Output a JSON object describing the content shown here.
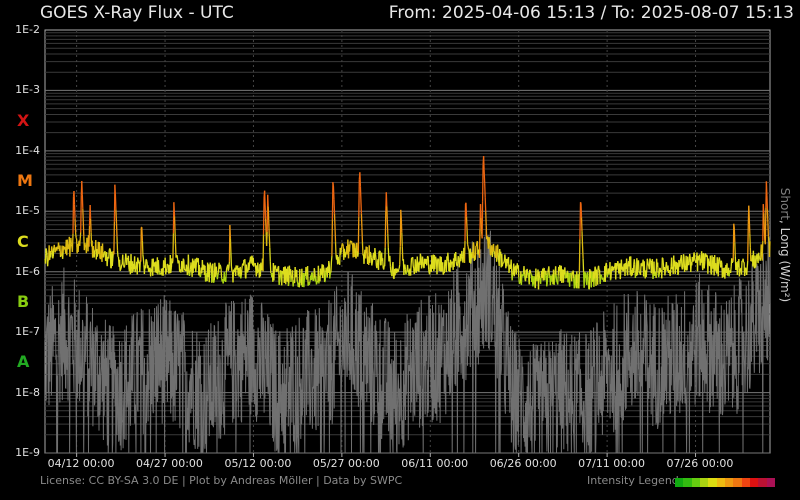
{
  "header": {
    "title": "GOES X-Ray Flux - UTC",
    "range": "From: 2025-04-06 15:13  /  To: 2025-08-07 15:13"
  },
  "footer": {
    "credits": "License: CC BY-SA 3.0 DE | Plot by Andreas Möller | Data by SWPC",
    "legend_label": "Intensity Legend",
    "legend_colors": [
      "#11aa11",
      "#33bb11",
      "#66cc11",
      "#aad411",
      "#dddd11",
      "#eebb11",
      "#ee9911",
      "#ee7711",
      "#ee4411",
      "#dd1111",
      "#bb1133",
      "#aa1155"
    ]
  },
  "chart_data": {
    "type": "line",
    "title": "GOES X-Ray Flux - UTC",
    "y_scale": "log",
    "ylim": [
      1e-09,
      0.01
    ],
    "ylabel_short": "Short",
    "ylabel_sep": ", ",
    "ylabel_long": "Long (W/m²)",
    "y_ticks": [
      {
        "value": 0.01,
        "label": "1E-2"
      },
      {
        "value": 0.001,
        "label": "1E-3"
      },
      {
        "value": 0.0001,
        "label": "1E-4"
      },
      {
        "value": 1e-05,
        "label": "1E-5"
      },
      {
        "value": 1e-06,
        "label": "1E-6"
      },
      {
        "value": 1e-07,
        "label": "1E-7"
      },
      {
        "value": 1e-08,
        "label": "1E-8"
      },
      {
        "value": 1e-09,
        "label": "1E-9"
      }
    ],
    "flare_classes": [
      {
        "label": "X",
        "value": 0.0001,
        "color": "#d21414"
      },
      {
        "label": "M",
        "value": 1e-05,
        "color": "#ee7711"
      },
      {
        "label": "C",
        "value": 1e-06,
        "color": "#dcdc1e"
      },
      {
        "label": "B",
        "value": 1e-07,
        "color": "#88cc11"
      },
      {
        "label": "A",
        "value": 1e-08,
        "color": "#22aa22"
      }
    ],
    "x_range": [
      "2025-04-06 15:13",
      "2025-08-07 15:13"
    ],
    "x_ticks": [
      "04/12 00:00",
      "04/27 00:00",
      "05/12 00:00",
      "05/27 00:00",
      "06/11 00:00",
      "06/26 00:00",
      "07/11 00:00",
      "07/26 00:00"
    ],
    "grid": true,
    "series": [
      {
        "role": "long",
        "x": [
          "2025-04-06",
          "2025-04-10",
          "2025-04-14",
          "2025-04-18",
          "2025-04-22",
          "2025-04-26",
          "2025-04-30",
          "2025-05-04",
          "2025-05-08",
          "2025-05-12",
          "2025-05-16",
          "2025-05-20",
          "2025-05-24",
          "2025-05-28",
          "2025-06-01",
          "2025-06-05",
          "2025-06-09",
          "2025-06-13",
          "2025-06-17",
          "2025-06-21",
          "2025-06-25",
          "2025-06-29",
          "2025-07-03",
          "2025-07-07",
          "2025-07-11",
          "2025-07-15",
          "2025-07-19",
          "2025-07-23",
          "2025-07-27",
          "2025-07-31",
          "2025-08-04",
          "2025-08-07"
        ],
        "values": [
          1.6e-06,
          2.5e-06,
          2.8e-06,
          1.6e-06,
          1.3e-06,
          1.2e-06,
          1.4e-06,
          1e-06,
          9e-07,
          1.3e-06,
          9e-07,
          8e-07,
          9e-07,
          2.5e-06,
          1.8e-06,
          1.1e-06,
          1.4e-06,
          1.3e-06,
          1.8e-06,
          2.8e-06,
          1e-06,
          7.5e-07,
          9e-07,
          7e-07,
          1e-06,
          1.2e-06,
          1.1e-06,
          1.3e-06,
          1.5e-06,
          1.1e-06,
          1.3e-06,
          2.2e-06
        ]
      },
      {
        "role": "short",
        "x": [
          "2025-04-06",
          "2025-04-10",
          "2025-04-14",
          "2025-04-18",
          "2025-04-22",
          "2025-04-26",
          "2025-04-30",
          "2025-05-04",
          "2025-05-08",
          "2025-05-12",
          "2025-05-16",
          "2025-05-20",
          "2025-05-24",
          "2025-05-28",
          "2025-06-01",
          "2025-06-05",
          "2025-06-09",
          "2025-06-13",
          "2025-06-17",
          "2025-06-21",
          "2025-06-25",
          "2025-06-29",
          "2025-07-03",
          "2025-07-07",
          "2025-07-11",
          "2025-07-15",
          "2025-07-19",
          "2025-07-23",
          "2025-07-27",
          "2025-07-31",
          "2025-08-04",
          "2025-08-07"
        ],
        "values": [
          3e-08,
          1e-07,
          4e-08,
          1e-08,
          2e-08,
          4e-08,
          2e-08,
          1e-08,
          3e-08,
          5e-08,
          1e-08,
          2e-08,
          2e-08,
          1e-07,
          3e-08,
          1e-08,
          3e-08,
          4e-08,
          2e-07,
          6e-07,
          1e-08,
          5e-09,
          1e-08,
          8e-09,
          2e-08,
          5e-08,
          3e-08,
          4e-08,
          8e-08,
          3e-08,
          1e-07,
          3e-07
        ]
      }
    ],
    "flares": [
      {
        "x": "2025-04-11 12:00",
        "peak": 3e-05
      },
      {
        "x": "2025-04-12 20:00",
        "peak": 4e-05
      },
      {
        "x": "2025-04-14 06:00",
        "peak": 1.5e-05
      },
      {
        "x": "2025-04-18 12:00",
        "peak": 3e-05
      },
      {
        "x": "2025-04-23 00:00",
        "peak": 8e-06
      },
      {
        "x": "2025-04-28 12:00",
        "peak": 1.5e-05
      },
      {
        "x": "2025-05-08 00:00",
        "peak": 6e-06
      },
      {
        "x": "2025-05-13 20:00",
        "peak": 3e-05
      },
      {
        "x": "2025-05-14 10:00",
        "peak": 2e-05
      },
      {
        "x": "2025-05-25 12:00",
        "peak": 4e-05
      },
      {
        "x": "2025-05-30 00:00",
        "peak": 6e-05
      },
      {
        "x": "2025-06-03 12:00",
        "peak": 2.5e-05
      },
      {
        "x": "2025-06-06 00:00",
        "peak": 1.2e-05
      },
      {
        "x": "2025-06-17 00:00",
        "peak": 2e-05
      },
      {
        "x": "2025-06-19 12:00",
        "peak": 1.5e-05
      },
      {
        "x": "2025-06-20 00:00",
        "peak": 0.00011
      },
      {
        "x": "2025-07-06 12:00",
        "peak": 2e-05
      },
      {
        "x": "2025-08-01 12:00",
        "peak": 8e-06
      },
      {
        "x": "2025-08-04 00:00",
        "peak": 1.5e-05
      },
      {
        "x": "2025-08-06 12:00",
        "peak": 1.5e-05
      },
      {
        "x": "2025-08-07 00:00",
        "peak": 3.5e-05
      }
    ]
  }
}
